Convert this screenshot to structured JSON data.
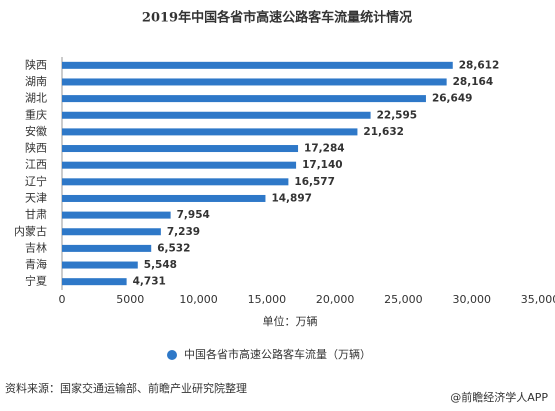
{
  "chart_data": {
    "type": "hbar",
    "title": "2019年中国各省市高速公路客车流量统计情况",
    "categories": [
      "陕西",
      "湖南",
      "湖北",
      "重庆",
      "安徽",
      "陕西",
      "江西",
      "辽宁",
      "天津",
      "甘肃",
      "内蒙古",
      "吉林",
      "青海",
      "宁夏"
    ],
    "series": [
      {
        "name": "中国各省市高速公路客车流量（万辆）",
        "color": "#2e78c8",
        "values": [
          28612,
          28164,
          26649,
          22595,
          21632,
          17284,
          17140,
          16577,
          14897,
          7954,
          7239,
          6532,
          5548,
          4731
        ],
        "value_labels": [
          "28,612",
          "28,164",
          "26,649",
          "22,595",
          "21,632",
          "17,284",
          "17,140",
          "16,577",
          "14,897",
          "7,954",
          "7,239",
          "6,532",
          "5,548",
          "4,731"
        ]
      }
    ],
    "xlim": [
      0,
      35000
    ],
    "xticks": [
      0,
      5000,
      {
        "value": 10000,
        "label": "10,000"
      },
      {
        "value": 15000,
        "label": "15,000"
      },
      {
        "value": 20000,
        "label": "20,000"
      },
      {
        "value": 25000,
        "label": "25,000"
      },
      {
        "value": 30000,
        "label": "30,000"
      },
      {
        "value": 35000,
        "label": "35,000"
      }
    ],
    "xlabel": "单位：万辆",
    "source": "资料来源：国家交通运输部、前瞻产业研究院整理",
    "credit": "@前瞻经济学人APP"
  }
}
